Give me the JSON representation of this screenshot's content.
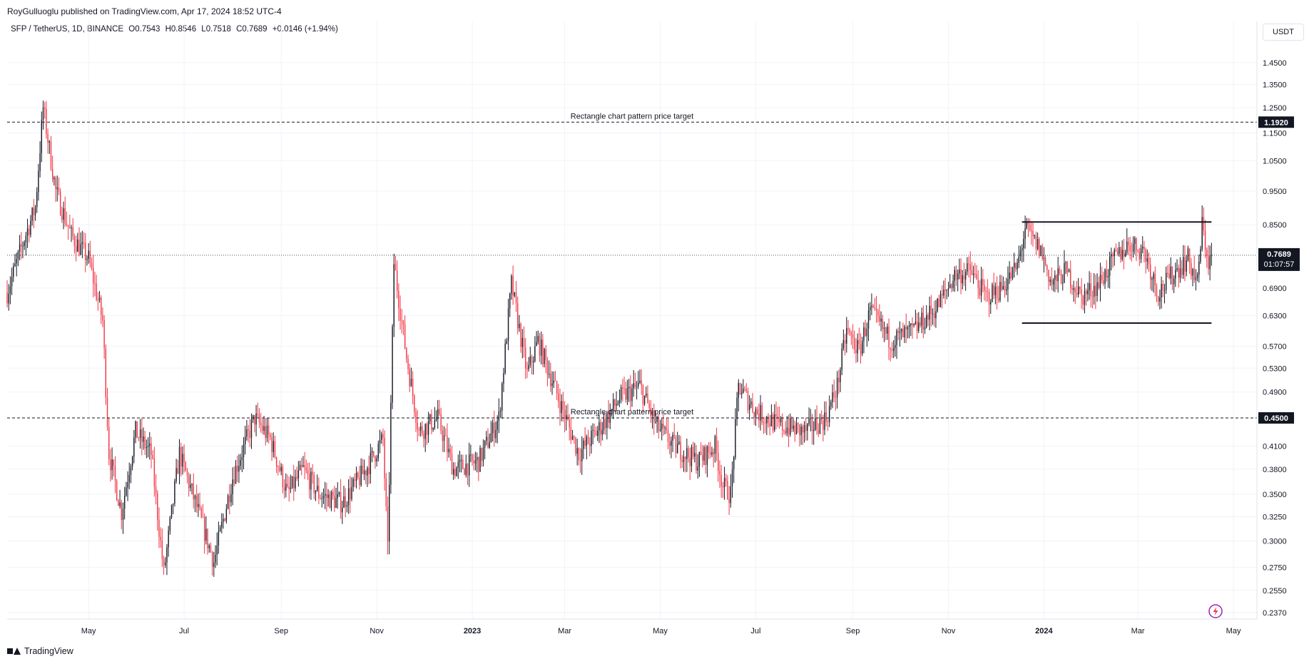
{
  "header": {
    "published": "RoyGulluoglu published on TradingView.com, Apr 17, 2024 18:52 UTC-4"
  },
  "legend": {
    "symbol": "SFP / TetherUS, 1D, BINANCE",
    "open": "O0.7543",
    "high": "H0.8546",
    "low": "L0.7518",
    "close": "C0.7689",
    "change": "+0.0146 (+1.94%)"
  },
  "price_scale": {
    "unit": "USDT",
    "current_price": "0.7689",
    "countdown": "01:07:57"
  },
  "footer": {
    "brand": "TradingView"
  },
  "colors": {
    "up": "#131722",
    "down": "#f23645",
    "grid": "#f0f3fa",
    "axis": "#e0e3eb",
    "text": "#131722"
  },
  "icons": [
    "tradingview-logo-icon",
    "lightning-icon"
  ],
  "chart_data": {
    "type": "candlestick",
    "title": "",
    "xlabel": "",
    "ylabel": "",
    "y_scale": "log",
    "ylim": [
      0.232,
      1.57
    ],
    "x_tick_labels": [
      "May",
      "Jul",
      "Sep",
      "Nov",
      "2023",
      "Mar",
      "May",
      "Jul",
      "Sep",
      "Nov",
      "2024",
      "Mar",
      "May"
    ],
    "y_tick_labels": [
      "1.4500",
      "1.3500",
      "1.2500",
      "1.1500",
      "1.0500",
      "0.9500",
      "0.8500",
      "0.6900",
      "0.6300",
      "0.5700",
      "0.5300",
      "0.4900",
      "0.4100",
      "0.3800",
      "0.3500",
      "0.3250",
      "0.3000",
      "0.2750",
      "0.2550",
      "0.2370"
    ],
    "path_points": [
      [
        "2022-03-10",
        0.68
      ],
      [
        "2022-03-20",
        0.8
      ],
      [
        "2022-03-28",
        0.9
      ],
      [
        "2022-04-02",
        1.25
      ],
      [
        "2022-04-10",
        0.95
      ],
      [
        "2022-04-20",
        0.82
      ],
      [
        "2022-05-01",
        0.76
      ],
      [
        "2022-05-10",
        0.62
      ],
      [
        "2022-05-14",
        0.4
      ],
      [
        "2022-05-22",
        0.33
      ],
      [
        "2022-05-31",
        0.43
      ],
      [
        "2022-06-10",
        0.4
      ],
      [
        "2022-06-18",
        0.27
      ],
      [
        "2022-06-28",
        0.4
      ],
      [
        "2022-07-12",
        0.32
      ],
      [
        "2022-07-20",
        0.28
      ],
      [
        "2022-08-01",
        0.37
      ],
      [
        "2022-08-15",
        0.45
      ],
      [
        "2022-08-25",
        0.42
      ],
      [
        "2022-09-05",
        0.35
      ],
      [
        "2022-09-15",
        0.38
      ],
      [
        "2022-09-25",
        0.35
      ],
      [
        "2022-10-10",
        0.34
      ],
      [
        "2022-10-25",
        0.38
      ],
      [
        "2022-11-05",
        0.42
      ],
      [
        "2022-11-08",
        0.29
      ],
      [
        "2022-11-12",
        0.75
      ],
      [
        "2022-11-20",
        0.55
      ],
      [
        "2022-11-28",
        0.43
      ],
      [
        "2022-12-10",
        0.45
      ],
      [
        "2022-12-20",
        0.38
      ],
      [
        "2023-01-05",
        0.39
      ],
      [
        "2023-01-18",
        0.45
      ],
      [
        "2023-01-26",
        0.7
      ],
      [
        "2023-02-05",
        0.52
      ],
      [
        "2023-02-12",
        0.58
      ],
      [
        "2023-02-25",
        0.48
      ],
      [
        "2023-03-10",
        0.4
      ],
      [
        "2023-03-25",
        0.44
      ],
      [
        "2023-04-05",
        0.48
      ],
      [
        "2023-04-18",
        0.5
      ],
      [
        "2023-04-28",
        0.44
      ],
      [
        "2023-05-10",
        0.41
      ],
      [
        "2023-05-25",
        0.39
      ],
      [
        "2023-06-05",
        0.41
      ],
      [
        "2023-06-10",
        0.36
      ],
      [
        "2023-06-15",
        0.35
      ],
      [
        "2023-06-20",
        0.5
      ],
      [
        "2023-07-01",
        0.46
      ],
      [
        "2023-07-15",
        0.44
      ],
      [
        "2023-08-01",
        0.43
      ],
      [
        "2023-08-15",
        0.45
      ],
      [
        "2023-08-22",
        0.5
      ],
      [
        "2023-08-28",
        0.6
      ],
      [
        "2023-09-05",
        0.56
      ],
      [
        "2023-09-12",
        0.64
      ],
      [
        "2023-09-25",
        0.58
      ],
      [
        "2023-10-10",
        0.6
      ],
      [
        "2023-10-25",
        0.65
      ],
      [
        "2023-11-05",
        0.72
      ],
      [
        "2023-11-15",
        0.73
      ],
      [
        "2023-11-25",
        0.67
      ],
      [
        "2023-12-05",
        0.69
      ],
      [
        "2023-12-15",
        0.74
      ],
      [
        "2023-12-20",
        0.84
      ],
      [
        "2023-12-30",
        0.78
      ],
      [
        "2024-01-06",
        0.7
      ],
      [
        "2024-01-15",
        0.73
      ],
      [
        "2024-01-25",
        0.67
      ],
      [
        "2024-02-05",
        0.7
      ],
      [
        "2024-02-15",
        0.76
      ],
      [
        "2024-02-25",
        0.8
      ],
      [
        "2024-03-05",
        0.78
      ],
      [
        "2024-03-14",
        0.68
      ],
      [
        "2024-03-25",
        0.73
      ],
      [
        "2024-04-02",
        0.76
      ],
      [
        "2024-04-08",
        0.7
      ],
      [
        "2024-04-11",
        0.85
      ],
      [
        "2024-04-15",
        0.75
      ],
      [
        "2024-04-17",
        0.7689
      ]
    ],
    "current_price": 0.7689,
    "annotations": [
      {
        "label": "Rectangle chart pattern price target",
        "price": 1.192,
        "tag": "1.1920",
        "style": "dashed"
      },
      {
        "label": "Rectangle chart pattern price target",
        "price": 0.45,
        "tag": "0.4500",
        "style": "dashed"
      }
    ],
    "rectangle": {
      "x_start": "2023-12-18",
      "x_end": "2024-04-17",
      "top": 0.858,
      "bottom": 0.615
    }
  }
}
